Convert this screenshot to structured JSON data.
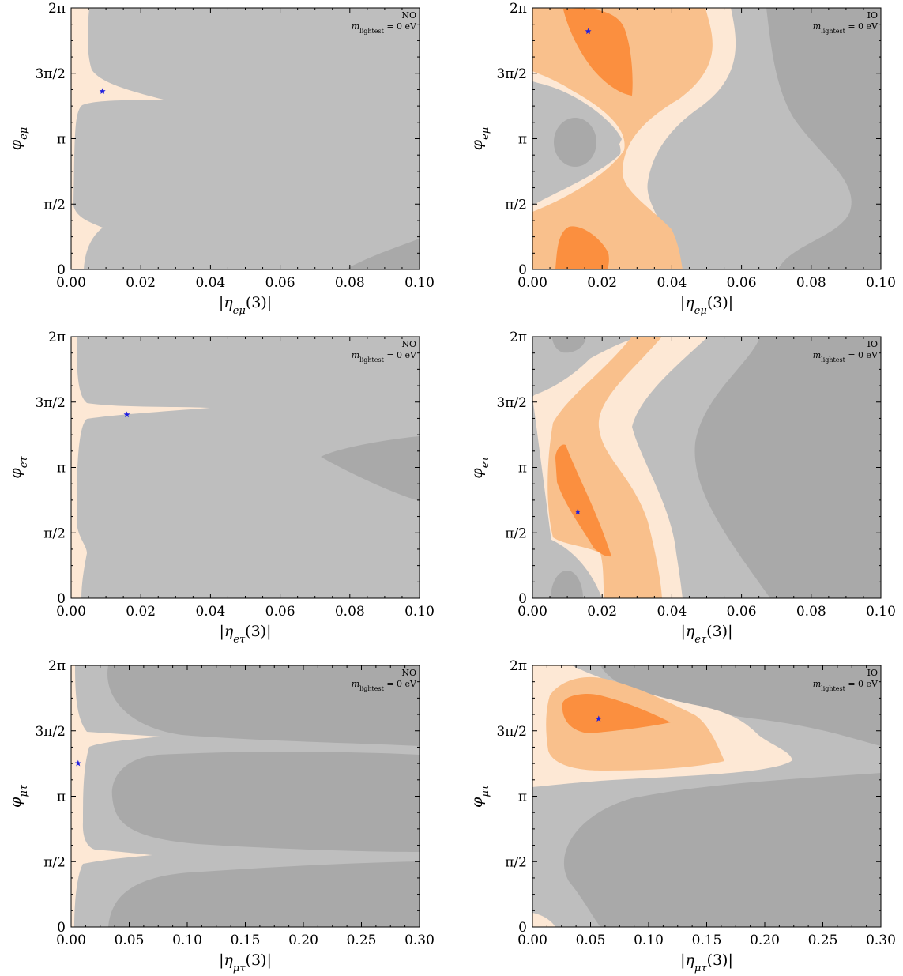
{
  "colors": {
    "gray_dark": "#a9a9a9",
    "gray_light": "#bebebe",
    "orange_light": "#fde8d5",
    "orange_mid": "#f9c08c",
    "orange_dark": "#fb8f3f",
    "marker": "#1f1fe0"
  },
  "chart_data": [
    {
      "type": "contour",
      "panel": "top-left",
      "xlabel": "|η_eμ(3)|",
      "ylabel": "φ_eμ",
      "hierarchy": "NO",
      "annotation": "m_lightest = 0 eV",
      "xlim": [
        0,
        0.1
      ],
      "ylim": [
        0,
        6.2832
      ],
      "xticks": [
        "0.00",
        "0.02",
        "0.04",
        "0.06",
        "0.08",
        "0.10"
      ],
      "yticks": [
        "0",
        "π/2",
        "π",
        "3π/2",
        "2π"
      ],
      "best_fit": {
        "x": 0.009,
        "y": 4.28
      }
    },
    {
      "type": "contour",
      "panel": "top-right",
      "xlabel": "|η_eμ(3)|",
      "ylabel": "φ_eμ",
      "hierarchy": "IO",
      "annotation": "m_lightest = 0 eV",
      "xlim": [
        0,
        0.1
      ],
      "ylim": [
        0,
        6.2832
      ],
      "xticks": [
        "0.00",
        "0.02",
        "0.04",
        "0.06",
        "0.08",
        "0.10"
      ],
      "yticks": [
        "0",
        "π/2",
        "π",
        "3π/2",
        "2π"
      ],
      "best_fit": {
        "x": 0.016,
        "y": 5.72
      }
    },
    {
      "type": "contour",
      "panel": "middle-left",
      "xlabel": "|η_eτ(3)|",
      "ylabel": "φ_eτ",
      "hierarchy": "NO",
      "annotation": "m_lightest = 0 eV",
      "xlim": [
        0,
        0.1
      ],
      "ylim": [
        0,
        6.2832
      ],
      "xticks": [
        "0.00",
        "0.02",
        "0.04",
        "0.06",
        "0.08",
        "0.10"
      ],
      "yticks": [
        "0",
        "π/2",
        "π",
        "3π/2",
        "2π"
      ],
      "best_fit": {
        "x": 0.016,
        "y": 4.41
      }
    },
    {
      "type": "contour",
      "panel": "middle-right",
      "xlabel": "|η_eτ(3)|",
      "ylabel": "φ_eτ",
      "hierarchy": "IO",
      "annotation": "m_lightest = 0 eV",
      "xlim": [
        0,
        0.1
      ],
      "ylim": [
        0,
        6.2832
      ],
      "xticks": [
        "0.00",
        "0.02",
        "0.04",
        "0.06",
        "0.08",
        "0.10"
      ],
      "yticks": [
        "0",
        "π/2",
        "π",
        "3π/2",
        "2π"
      ],
      "best_fit": {
        "x": 0.013,
        "y": 2.08
      }
    },
    {
      "type": "contour",
      "panel": "bottom-left",
      "xlabel": "|η_μτ(3)|",
      "ylabel": "φ_μτ",
      "hierarchy": "NO",
      "annotation": "m_lightest = 0 eV",
      "xlim": [
        0,
        0.3
      ],
      "ylim": [
        0,
        6.2832
      ],
      "xticks": [
        "0.00",
        "0.05",
        "0.10",
        "0.15",
        "0.20",
        "0.25",
        "0.30"
      ],
      "yticks": [
        "0",
        "π/2",
        "π",
        "3π/2",
        "2π"
      ],
      "best_fit": {
        "x": 0.006,
        "y": 3.93
      }
    },
    {
      "type": "contour",
      "panel": "bottom-right",
      "xlabel": "|η_μτ(3)|",
      "ylabel": "φ_μτ",
      "hierarchy": "IO",
      "annotation": "m_lightest = 0 eV",
      "xlim": [
        0,
        0.3
      ],
      "ylim": [
        0,
        6.2832
      ],
      "xticks": [
        "0.00",
        "0.05",
        "0.10",
        "0.15",
        "0.20",
        "0.25",
        "0.30"
      ],
      "yticks": [
        "0",
        "π/2",
        "π",
        "3π/2",
        "2π"
      ],
      "best_fit": {
        "x": 0.057,
        "y": 5.0
      }
    }
  ]
}
